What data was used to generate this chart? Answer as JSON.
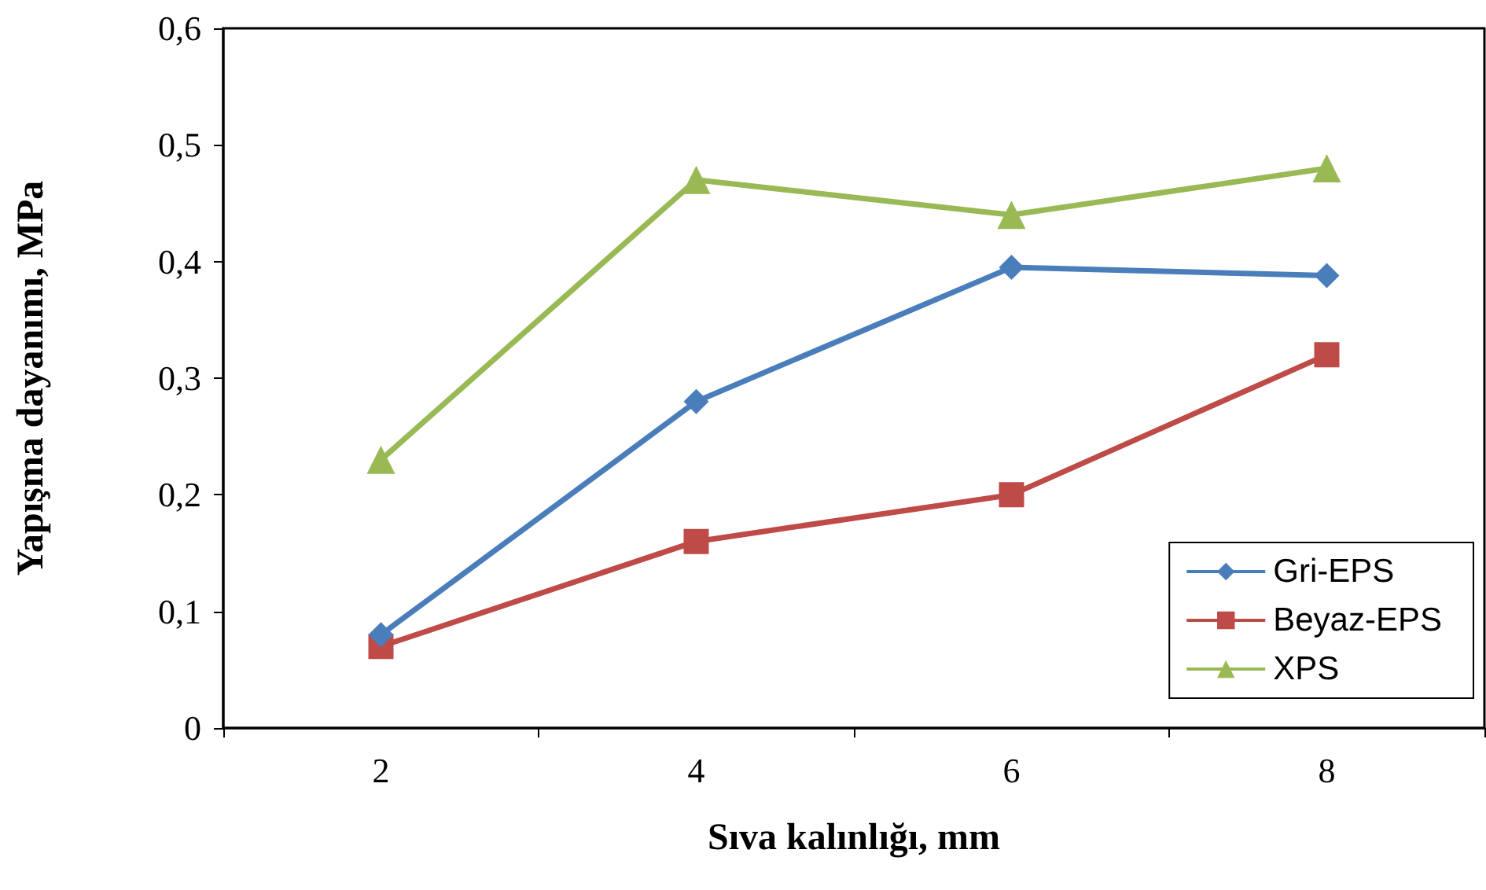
{
  "chart_data": {
    "type": "line",
    "xlabel": "Sıva kalınlığı, mm",
    "ylabel": "Yapışma dayanımı, MPa",
    "categories": [
      "2",
      "4",
      "6",
      "8"
    ],
    "series": [
      {
        "name": "Gri-EPS",
        "color": "#4a7ebb",
        "marker": "diamond",
        "values": [
          0.08,
          0.28,
          0.395,
          0.388
        ]
      },
      {
        "name": "Beyaz-EPS",
        "color": "#be4b48",
        "marker": "square",
        "values": [
          0.07,
          0.16,
          0.2,
          0.32
        ]
      },
      {
        "name": "XPS",
        "color": "#98b954",
        "marker": "triangle",
        "values": [
          0.23,
          0.47,
          0.44,
          0.48
        ]
      }
    ],
    "ylim": [
      0,
      0.6
    ],
    "yticks": [
      {
        "value": 0,
        "label": "0"
      },
      {
        "value": 0.1,
        "label": "0,1"
      },
      {
        "value": 0.2,
        "label": "0,2"
      },
      {
        "value": 0.3,
        "label": "0,3"
      },
      {
        "value": 0.4,
        "label": "0,4"
      },
      {
        "value": 0.5,
        "label": "0,5"
      },
      {
        "value": 0.6,
        "label": "0,6"
      }
    ],
    "grid": false,
    "legend": "bottom right",
    "line_style": "solid"
  }
}
